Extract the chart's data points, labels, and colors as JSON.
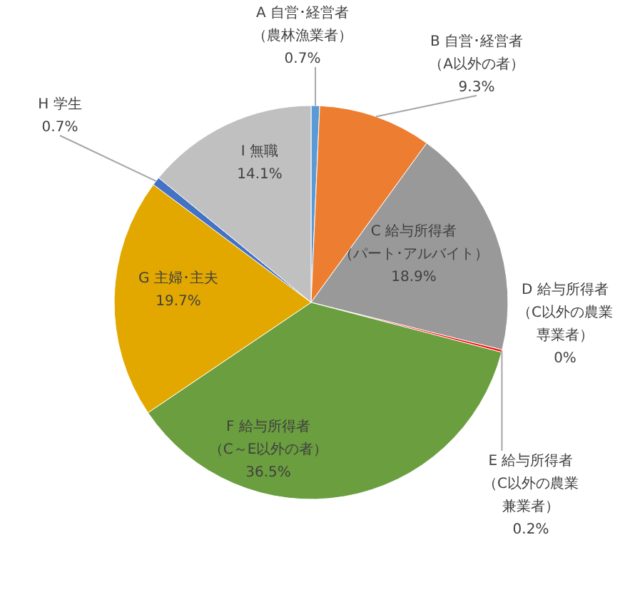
{
  "chart_data": {
    "type": "pie",
    "categories": [
      "A 自営･経営者（農林漁業者）",
      "B 自営･経営者（A以外の者）",
      "C 給与所得者（パート･アルバイト）",
      "D 給与所得者（C以外の農業専業者）",
      "E 給与所得者（C以外の農業兼業者）",
      "F 給与所得者（C～E以外の者）",
      "G 主婦･主夫",
      "H 学生",
      "I 無職"
    ],
    "values": [
      0.7,
      9.3,
      18.9,
      0,
      0.2,
      36.5,
      19.7,
      0.7,
      14.1
    ],
    "colors": [
      "#5b9bd5",
      "#ed7d31",
      "#999999",
      "#ffc000",
      "#ff0000",
      "#6a9e3e",
      "#e2a800",
      "#4472c4",
      "#c0c0c0"
    ],
    "value_labels": [
      "0.7%",
      "9.3%",
      "18.9%",
      "0%",
      "0.2%",
      "36.5%",
      "19.7%",
      "0.7%",
      "14.1%"
    ]
  }
}
